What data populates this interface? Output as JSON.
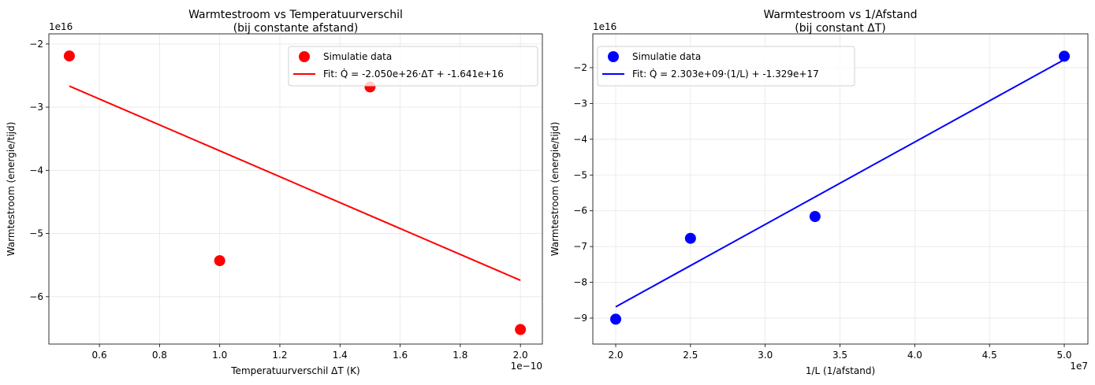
{
  "chart_data": [
    {
      "type": "scatter",
      "title": [
        "Warmtestroom vs Temperatuurverschil",
        "(bij constante afstand)"
      ],
      "xlabel": "Temperatuurverschil ΔT (K)",
      "ylabel": "Warmtestroom (energie/tijd)",
      "x_offset_label": "1e−10",
      "y_offset_label": "1e16",
      "x_scale": 1e-10,
      "y_scale": 1e+16,
      "xlim": [
        0.432,
        2.073
      ],
      "ylim": [
        -6.75,
        -1.84
      ],
      "xticks": [
        0.6,
        0.8,
        1.0,
        1.2,
        1.4,
        1.6,
        1.8,
        2.0
      ],
      "xtick_labels": [
        "0.6",
        "0.8",
        "1.0",
        "1.2",
        "1.4",
        "1.6",
        "1.8",
        "2.0"
      ],
      "yticks": [
        -2,
        -3,
        -4,
        -5,
        -6
      ],
      "ytick_labels": [
        "−2",
        "−3",
        "−4",
        "−5",
        "−6"
      ],
      "grid": true,
      "legend": "top-right",
      "color": "#ff0000",
      "series": [
        {
          "name": "Simulatie data",
          "kind": "scatter",
          "x": [
            0.5,
            1.0,
            1.5,
            2.0
          ],
          "y": [
            -2.19,
            -5.43,
            -2.68,
            -6.52
          ]
        },
        {
          "name": "Fit: Q̇ = -2.050e+26·ΔT + -1.641e+16",
          "kind": "line",
          "x": [
            0.5,
            2.0
          ],
          "y": [
            -2.666,
            -5.741
          ]
        }
      ]
    },
    {
      "type": "scatter",
      "title": [
        "Warmtestroom vs 1/Afstand",
        "(bij constant ΔT)"
      ],
      "xlabel": "1/L (1/afstand)",
      "ylabel": "Warmtestroom (energie/tijd)",
      "x_offset_label": "1e7",
      "y_offset_label": "1e16",
      "x_scale": 10000000.0,
      "y_scale": 1e+16,
      "xlim": [
        1.847,
        5.158
      ],
      "ylim": [
        -9.725,
        -1.055
      ],
      "xticks": [
        2.0,
        2.5,
        3.0,
        3.5,
        4.0,
        4.5,
        5.0
      ],
      "xtick_labels": [
        "2.0",
        "2.5",
        "3.0",
        "3.5",
        "4.0",
        "4.5",
        "5.0"
      ],
      "yticks": [
        -2,
        -3,
        -4,
        -5,
        -6,
        -7,
        -8,
        -9
      ],
      "ytick_labels": [
        "−2",
        "−3",
        "−4",
        "−5",
        "−6",
        "−7",
        "−8",
        "−9"
      ],
      "grid": true,
      "legend": "top-left",
      "color": "#0000ff",
      "series": [
        {
          "name": "Simulatie data",
          "kind": "scatter",
          "x": [
            2.0,
            2.5,
            3.333,
            5.0
          ],
          "y": [
            -9.03,
            -6.77,
            -6.16,
            -1.68
          ]
        },
        {
          "name": "Fit: Q̇ = 2.303e+09·(1/L) + -1.329e+17",
          "kind": "line",
          "x": [
            2.0,
            5.0
          ],
          "y": [
            -8.684,
            -1.775
          ]
        }
      ]
    }
  ]
}
